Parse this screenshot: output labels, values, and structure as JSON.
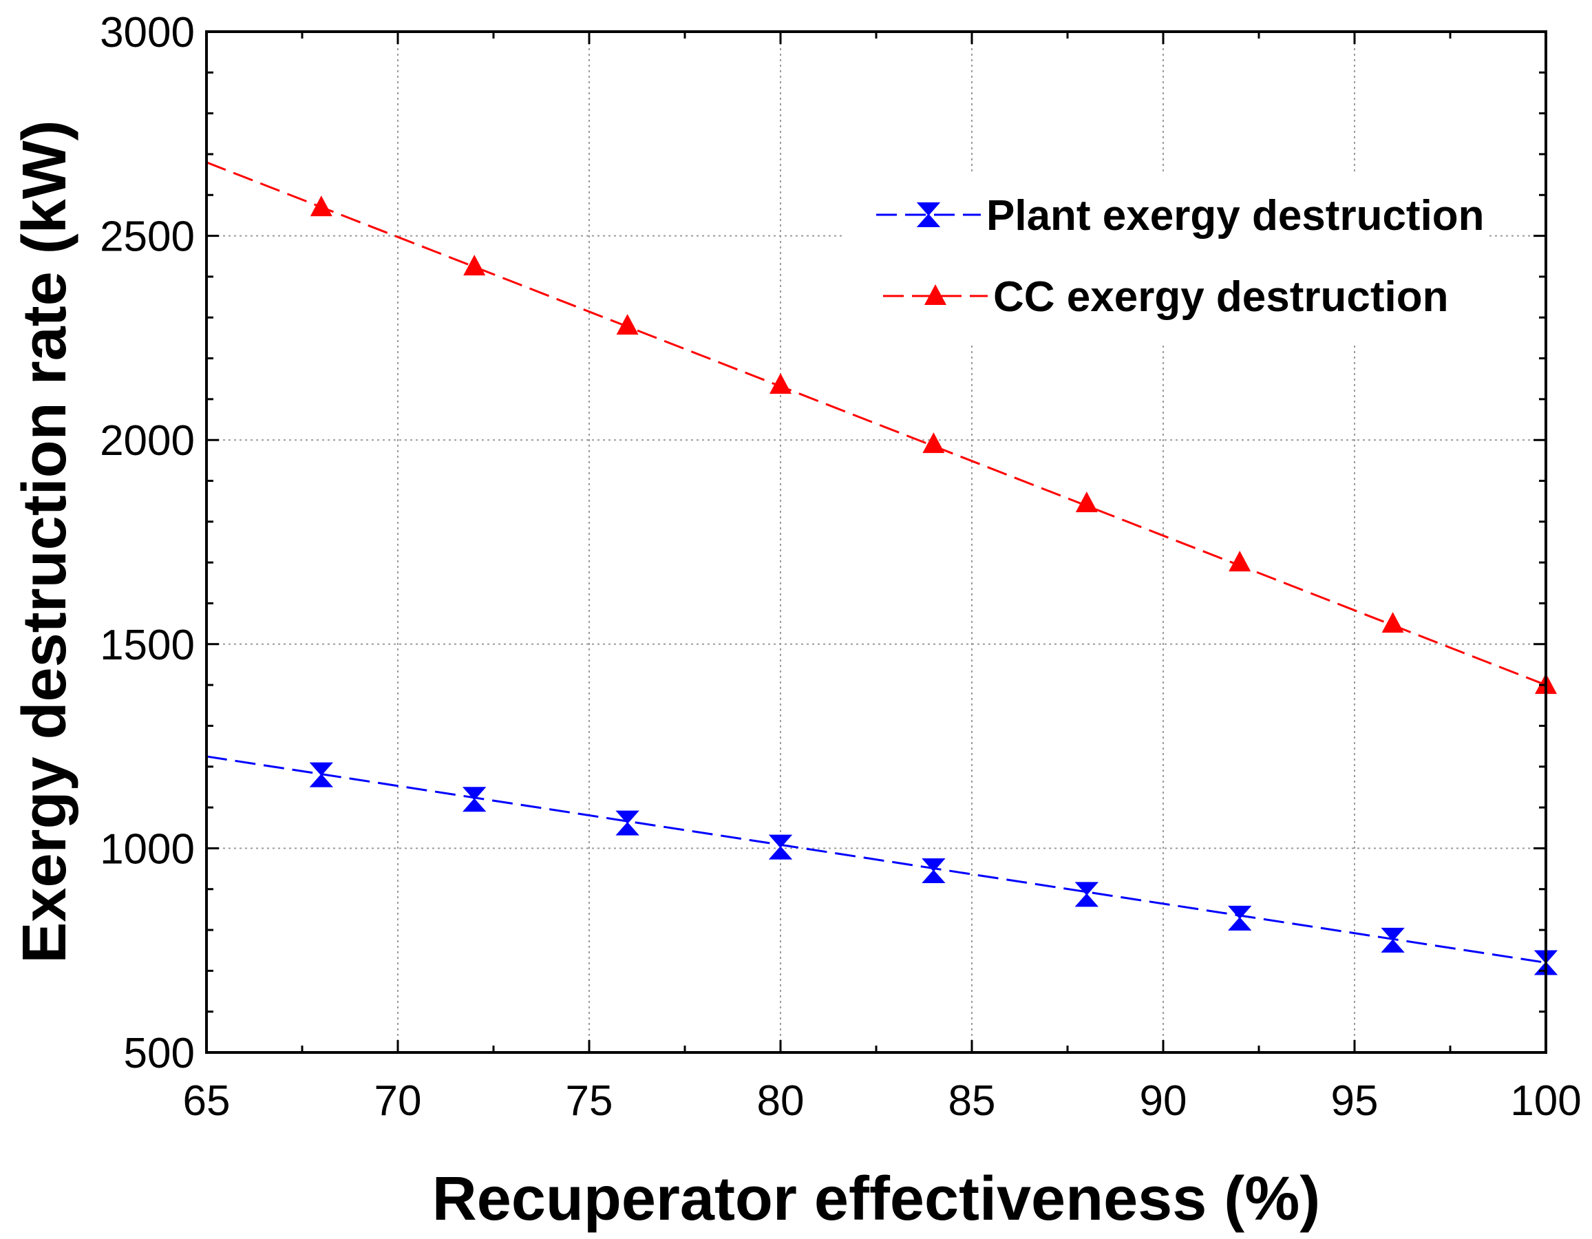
{
  "chart_data": {
    "type": "line",
    "title": "",
    "xlabel": "Recuperator effectiveness (%)",
    "ylabel": "Exergy destruction rate (kW)",
    "xlim": [
      65,
      100
    ],
    "ylim": [
      500,
      3000
    ],
    "xticks": [
      65,
      70,
      75,
      80,
      85,
      90,
      95,
      100
    ],
    "yticks": [
      500,
      1000,
      1500,
      2000,
      2500,
      3000
    ],
    "grid": true,
    "legend_position": "top-right",
    "series": [
      {
        "name": "Plant exergy destruction",
        "color": "#0000ff",
        "marker": "hourglass",
        "line_style": "dashed",
        "line_x": [
          65,
          100
        ],
        "line_y": [
          1225,
          720
        ],
        "x": [
          68,
          72,
          76,
          80,
          84,
          88,
          92,
          96,
          100
        ],
        "values": [
          1180,
          1120,
          1062,
          1003,
          945,
          887,
          829,
          775,
          720
        ]
      },
      {
        "name": "CC exergy destruction",
        "color": "#ff0000",
        "marker": "triangle",
        "line_style": "dashed",
        "line_x": [
          65,
          100
        ],
        "line_y": [
          2680,
          1400
        ],
        "x": [
          68,
          72,
          76,
          80,
          84,
          88,
          92,
          96,
          100
        ],
        "values": [
          2570,
          2425,
          2280,
          2135,
          1990,
          1845,
          1700,
          1550,
          1400
        ]
      }
    ]
  }
}
